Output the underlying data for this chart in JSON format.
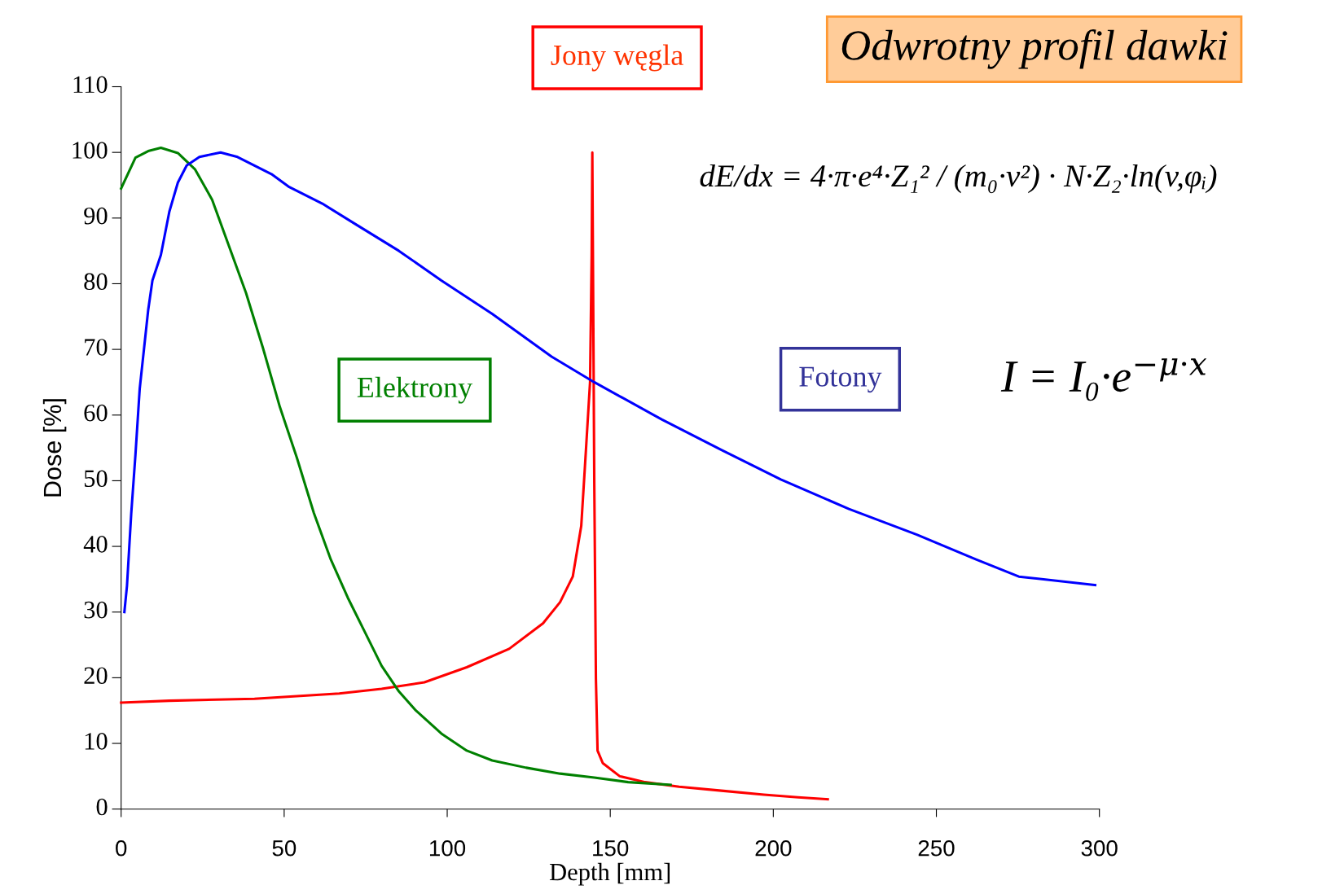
{
  "chart_data": {
    "type": "line",
    "title": "Odwrotny profil dawki",
    "xlabel": "Depth [mm]",
    "ylabel": "Dose [%]",
    "xlim": [
      0,
      300
    ],
    "ylim": [
      0,
      110
    ],
    "xticks": [
      0,
      50,
      100,
      150,
      200,
      250,
      300
    ],
    "yticks": [
      0,
      10,
      20,
      30,
      40,
      50,
      60,
      70,
      80,
      90,
      100,
      110
    ],
    "grid": false,
    "legend": false,
    "marker": "none",
    "line_style": "solid",
    "series": [
      {
        "name": "Jony węgla",
        "color": "#ff0000",
        "x": [
          0,
          14.8,
          40.9,
          66.9,
          79.9,
          93.0,
          106,
          119,
          129.4,
          134.6,
          138.5,
          141.1,
          142.4,
          143.8,
          144.3,
          144.5,
          145.1,
          145.6,
          146.1,
          147.7,
          152.9,
          160.7,
          171.1,
          184.1,
          197.1,
          207.6,
          216.7
        ],
        "values": [
          16.2,
          16.5,
          16.8,
          17.6,
          18.3,
          19.3,
          21.6,
          24.4,
          28.3,
          31.5,
          35.4,
          43.1,
          53.5,
          65,
          84.4,
          100,
          49.6,
          19.9,
          8.9,
          7,
          5,
          4.1,
          3.4,
          2.8,
          2.2,
          1.8,
          1.5
        ]
      },
      {
        "name": "Elektrony",
        "color": "#008000",
        "x": [
          0,
          4.4,
          8.3,
          12.2,
          17.4,
          22.7,
          27.9,
          33.1,
          38.3,
          43.5,
          48.7,
          53.9,
          59.1,
          64.3,
          69.5,
          74.7,
          79.9,
          85.2,
          90.4,
          98.2,
          106,
          113.8,
          124.2,
          134.6,
          145.1,
          155.5,
          168.5
        ],
        "values": [
          94.5,
          99.2,
          100.2,
          100.7,
          99.9,
          97.4,
          92.8,
          85.7,
          78.6,
          70.2,
          61.2,
          53.5,
          45.1,
          38,
          32.2,
          27,
          21.8,
          17.9,
          15,
          11.5,
          8.9,
          7.4,
          6.3,
          5.4,
          4.8,
          4.1,
          3.7
        ]
      },
      {
        "name": "Fotony",
        "color": "#0000ff",
        "x": [
          1.0,
          1.8,
          3.1,
          4.4,
          5.7,
          7.0,
          8.3,
          9.6,
          12.2,
          14.8,
          17.4,
          20.1,
          24.0,
          30.5,
          35.7,
          40.9,
          46.1,
          51.3,
          61.7,
          72.1,
          85.2,
          98.2,
          113.8,
          132.0,
          145.1,
          165.9,
          184.1,
          202.3,
          223.2,
          244.0,
          262.2,
          275.3,
          298.7
        ],
        "values": [
          30,
          34,
          45,
          54,
          64,
          70,
          76,
          80.5,
          84.4,
          91,
          95.4,
          98,
          99.3,
          100,
          99.3,
          98,
          96.7,
          94.8,
          92.2,
          89,
          85,
          80.5,
          75.4,
          68.9,
          65,
          59.3,
          54.7,
          50.2,
          45.7,
          41.8,
          38,
          35.4,
          34.1
        ]
      }
    ],
    "annotations": [
      "dE/dx = 4·π·e⁴·Z₁² / (m₀·v²) · N·Z₂·ln(v,φᵢ)",
      "I = I₀·e$^{−μ·x}$"
    ]
  }
}
